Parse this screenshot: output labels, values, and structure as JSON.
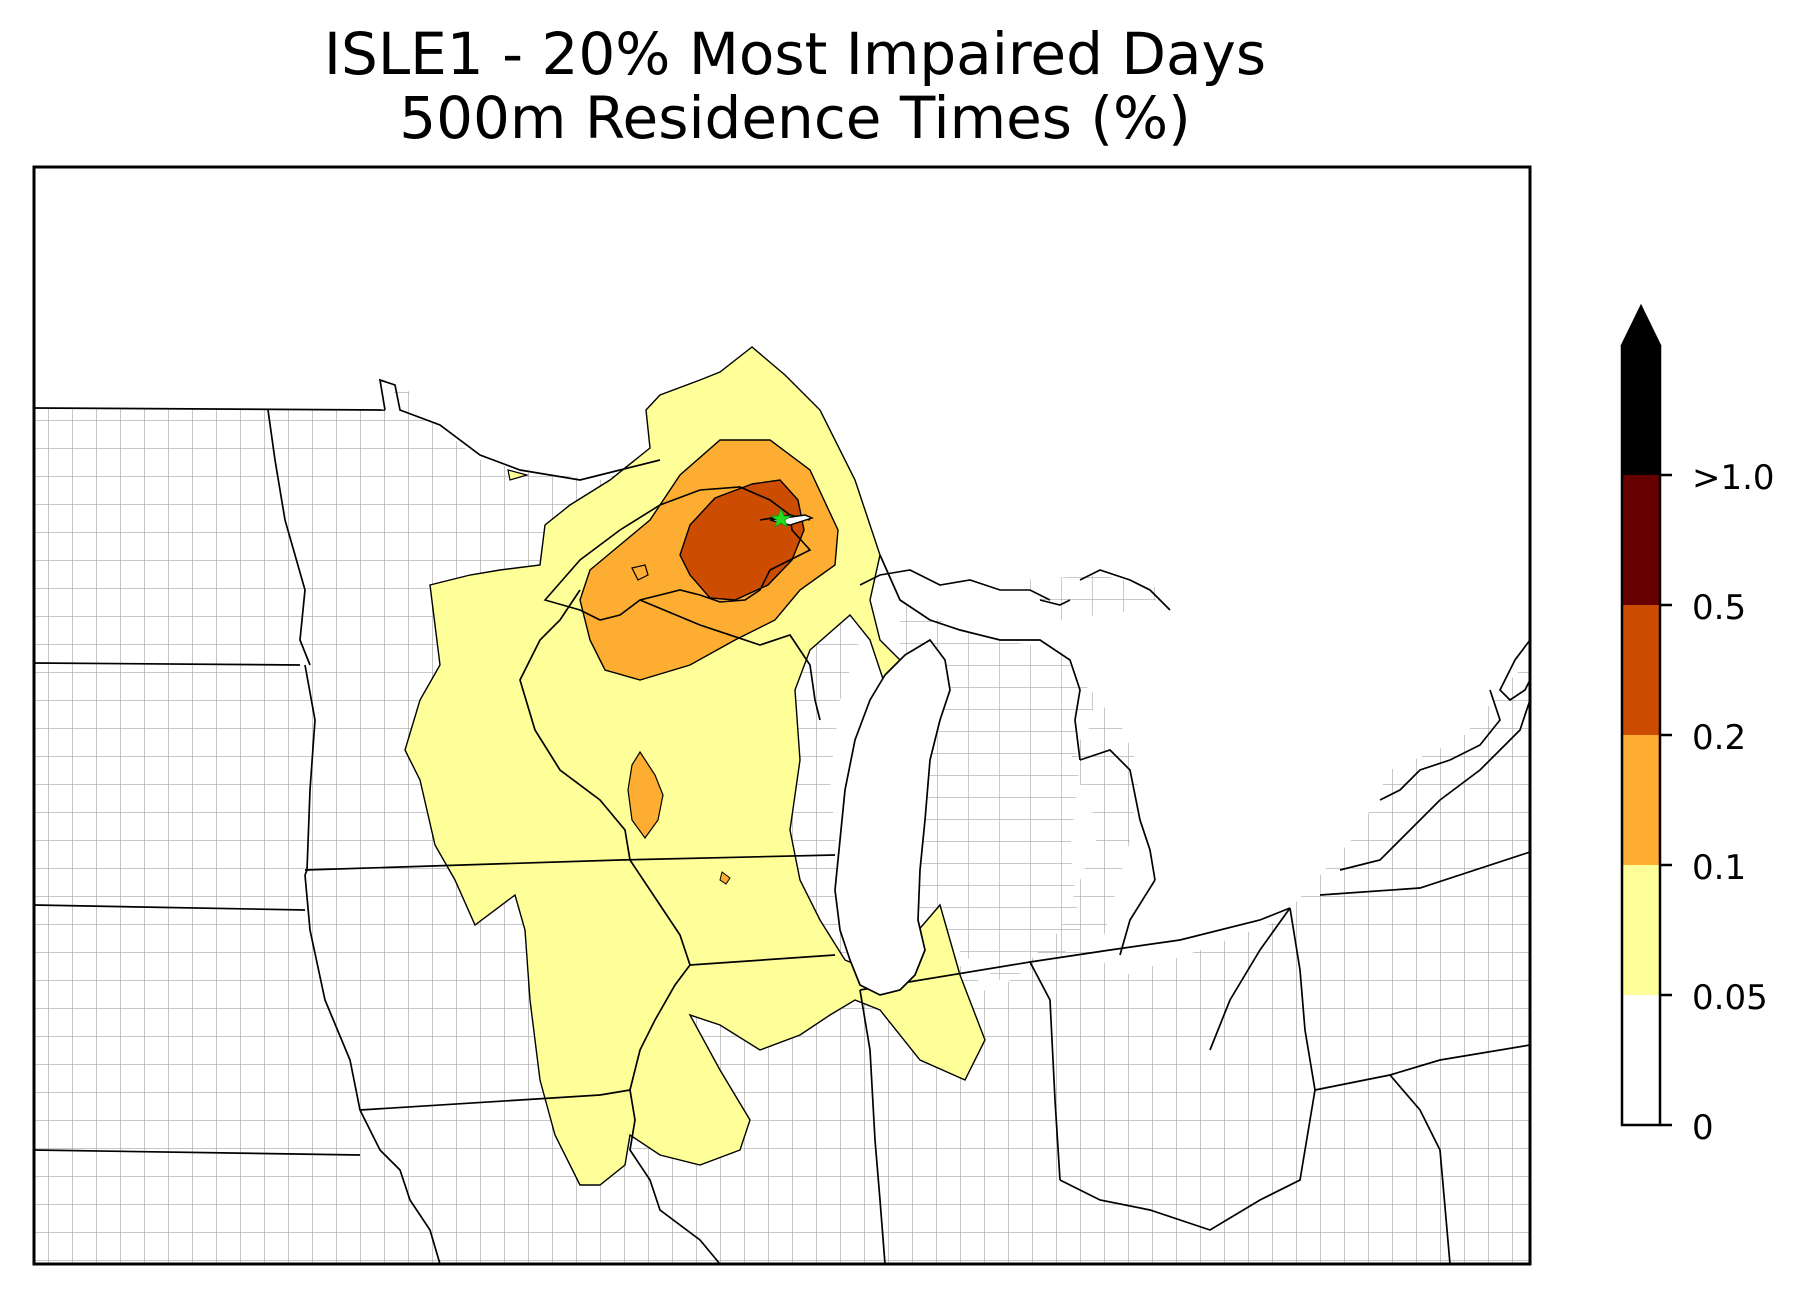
{
  "title": {
    "line1": "ISLE1 - 20% Most Impaired Days",
    "line2": "500m Residence Times (%)"
  },
  "colorbar": {
    "levels": [
      {
        "label": "0",
        "color": "#ffffff"
      },
      {
        "label": "0.05",
        "color": "#ffff99"
      },
      {
        "label": "0.1",
        "color": "#fdae32"
      },
      {
        "label": "0.2",
        "color": "#cc4c02"
      },
      {
        "label": "0.5",
        "color": "#660000"
      },
      {
        "label": ">1.0",
        "color": "#000000"
      }
    ],
    "extend": "max"
  },
  "colors": {
    "band_005_01": "#ffff99",
    "band_01_02": "#fdae32",
    "band_02_05": "#cc4c02",
    "county_lines": "#a8a8a8",
    "state_lines": "#000000",
    "site_marker": "#22dd22"
  },
  "map": {
    "site_marker": "green-star",
    "region": "Upper Midwest / Great Lakes"
  }
}
